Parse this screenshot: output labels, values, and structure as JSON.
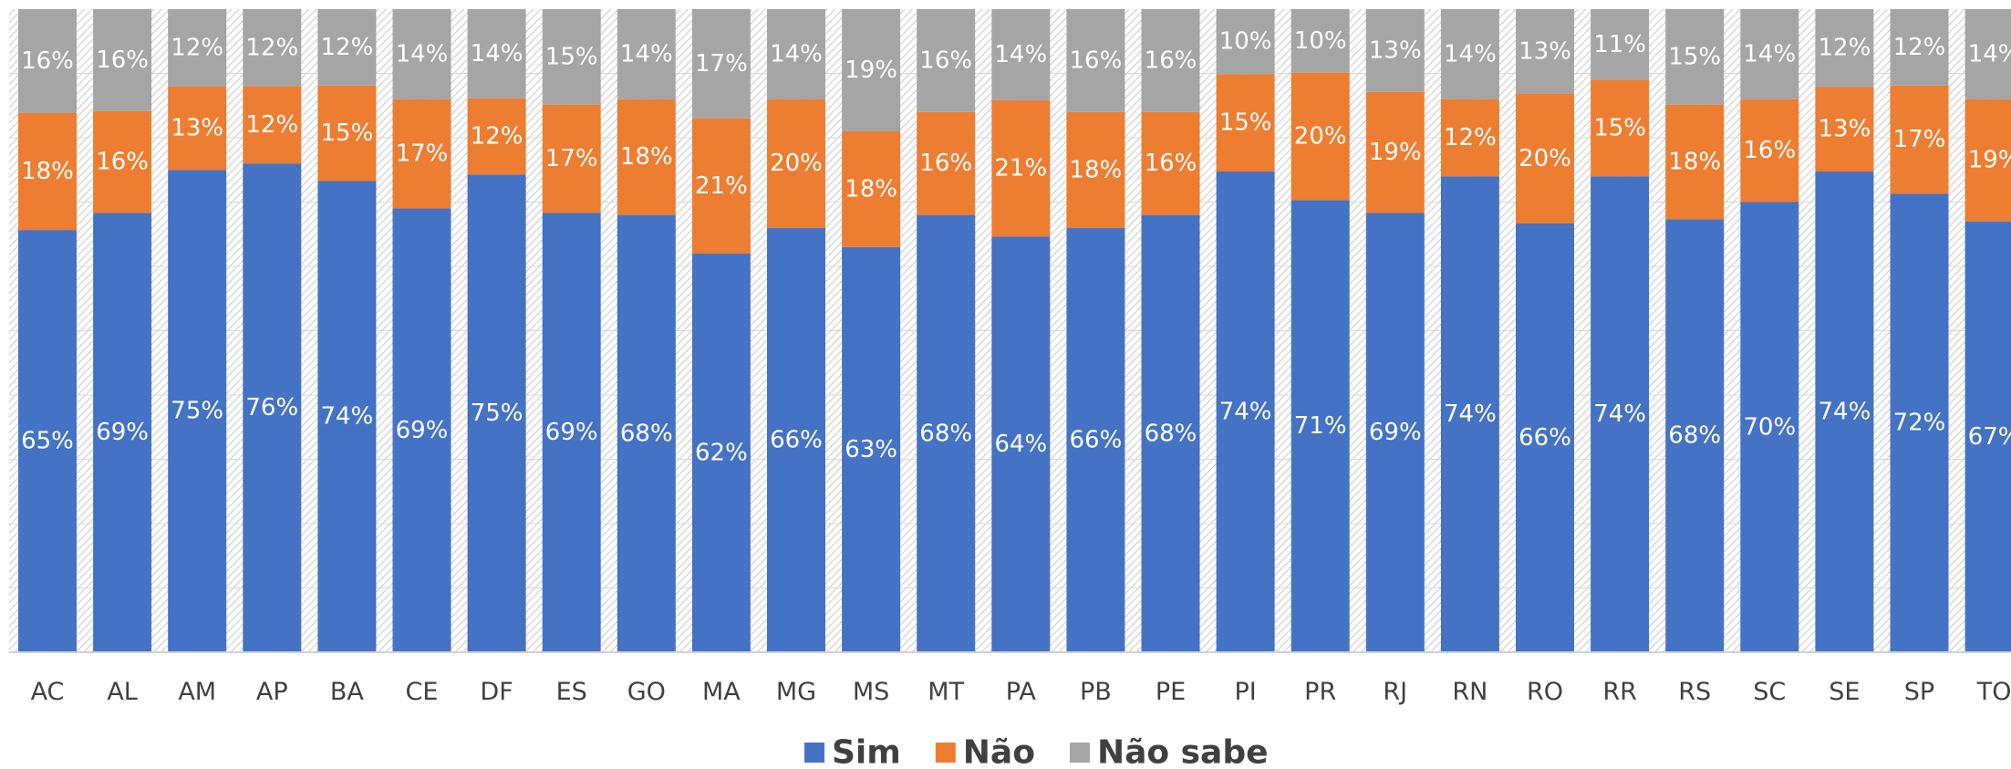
{
  "chart_data": {
    "type": "bar",
    "stacked": true,
    "categories": [
      "AC",
      "AL",
      "AM",
      "AP",
      "BA",
      "CE",
      "DF",
      "ES",
      "GO",
      "MA",
      "MG",
      "MS",
      "MT",
      "PA",
      "PB",
      "PE",
      "PI",
      "PR",
      "RJ",
      "RN",
      "RO",
      "RR",
      "RS",
      "SC",
      "SE",
      "SP",
      "TO"
    ],
    "series": [
      {
        "name": "Sim",
        "color": "#4472C4",
        "values": [
          65,
          69,
          75,
          76,
          74,
          69,
          75,
          69,
          68,
          62,
          66,
          63,
          68,
          64,
          66,
          68,
          74,
          71,
          69,
          74,
          66,
          74,
          68,
          70,
          74,
          72,
          67
        ]
      },
      {
        "name": "Não",
        "color": "#ED7D31",
        "values": [
          18,
          16,
          13,
          12,
          15,
          17,
          12,
          17,
          18,
          21,
          20,
          18,
          16,
          21,
          18,
          16,
          15,
          20,
          19,
          12,
          20,
          15,
          18,
          16,
          13,
          17,
          19
        ]
      },
      {
        "name": "Não sabe",
        "color": "#A5A5A5",
        "values": [
          16,
          16,
          12,
          12,
          12,
          14,
          14,
          15,
          14,
          17,
          14,
          19,
          16,
          14,
          16,
          16,
          10,
          10,
          13,
          14,
          13,
          11,
          15,
          14,
          12,
          12,
          14
        ]
      }
    ],
    "value_suffix": "%",
    "ylim": [
      0,
      100
    ],
    "legend_position": "bottom",
    "gridlines": true,
    "background_pattern": "diagonal-hatch"
  }
}
